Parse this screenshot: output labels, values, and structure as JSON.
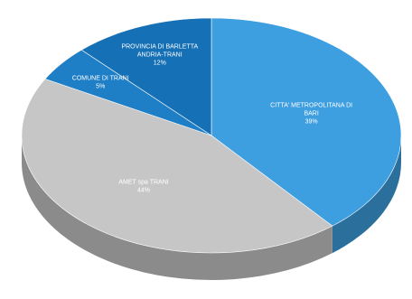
{
  "chart_data": {
    "type": "pie",
    "title": "",
    "three_d": true,
    "legend": "none",
    "slices": [
      {
        "label_lines": [
          "CITTA' METROPOLITANA DI",
          "BARI"
        ],
        "value_label": "39%",
        "value": 39,
        "color": "#3d9ee0"
      },
      {
        "label_lines": [
          "AMET spa TRANI"
        ],
        "value_label": "44%",
        "value": 44,
        "color": "#c6c6c6"
      },
      {
        "label_lines": [
          "COMUNE DI TRANI"
        ],
        "value_label": "5%",
        "value": 5,
        "color": "#1f7fc6"
      },
      {
        "label_lines": [
          "PROVINCIA DI BARLETTA",
          "ANDRIA-TRANI"
        ],
        "value_label": "12%",
        "value": 12,
        "color": "#1570b6"
      }
    ]
  }
}
